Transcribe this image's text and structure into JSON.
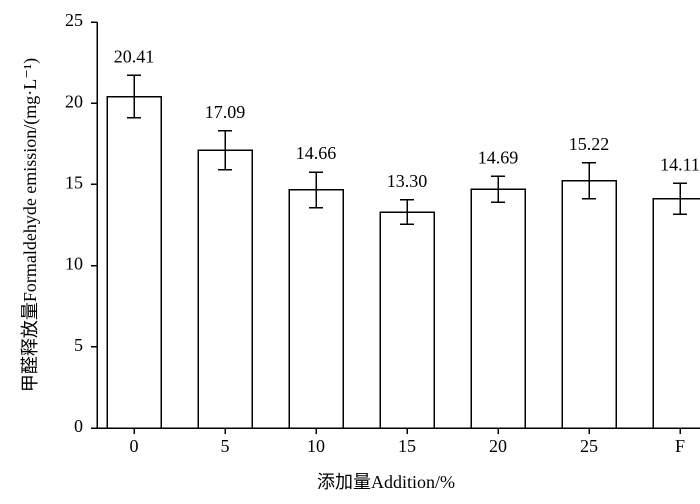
{
  "chart_data": {
    "type": "bar",
    "x_label": "添加量Addition/%",
    "y_label": "甲醛释放量Formaldehyde emission/(mg·L⁻¹)",
    "categories": [
      "0",
      "5",
      "10",
      "15",
      "20",
      "25",
      "F"
    ],
    "values": [
      20.41,
      17.09,
      14.66,
      13.3,
      14.69,
      15.22,
      14.11
    ],
    "value_labels": [
      "20.41",
      "17.09",
      "14.66",
      "13.30",
      "14.69",
      "15.22",
      "14.11"
    ],
    "errors": [
      1.3,
      1.2,
      1.1,
      0.75,
      0.8,
      1.1,
      0.95
    ],
    "color": "#ffffff",
    "ylim": [
      0,
      25
    ],
    "yticks": [
      0,
      5,
      10,
      15,
      20,
      25
    ],
    "grid": false
  }
}
